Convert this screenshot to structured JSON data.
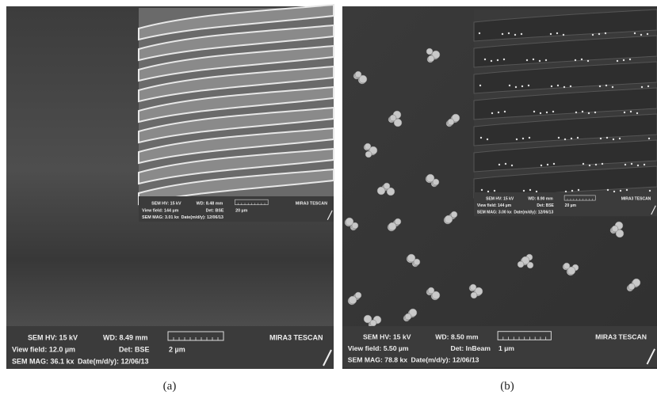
{
  "panels": [
    {
      "caption": "(a)",
      "info": {
        "hv": "SEM HV: 15 kV",
        "wd": "WD: 8.49 mm",
        "brand": "MIRA3 TESCAN",
        "view_field": "View field: 12.0 µm",
        "det": "Det: BSE",
        "scale": "2 µm",
        "mag": "SEM MAG: 36.1 kx",
        "date": "Date(m/d/y): 12/06/13"
      },
      "inset": {
        "hv": "SEM HV: 15 kV",
        "wd": "WD: 8.48 mm",
        "brand": "MIRA3 TESCAN",
        "view_field": "View field: 144 µm",
        "det": "Det: BSE",
        "scale": "20 µm",
        "mag": "SEM MAG: 3.01 kx",
        "date": "Date(m/d/y): 12/06/13"
      }
    },
    {
      "caption": "(b)",
      "info": {
        "hv": "SEM HV: 15 kV",
        "wd": "WD: 8.50 mm",
        "brand": "MIRA3 TESCAN",
        "view_field": "View field: 5.50 µm",
        "det": "Det: InBeam",
        "scale": "1 µm",
        "mag": "SEM MAG: 78.8 kx",
        "date": "Date(m/d/y): 12/06/13"
      },
      "inset": {
        "hv": "SEM HV: 15 kV",
        "wd": "WD: 8.90 mm",
        "brand": "MIRA3 TESCAN",
        "view_field": "View field: 144 µm",
        "det": "Det: BSE",
        "scale": "20 µm",
        "mag": "SEM MAG: 3.00 kx",
        "date": "Date(m/d/y): 12/06/13"
      }
    }
  ]
}
